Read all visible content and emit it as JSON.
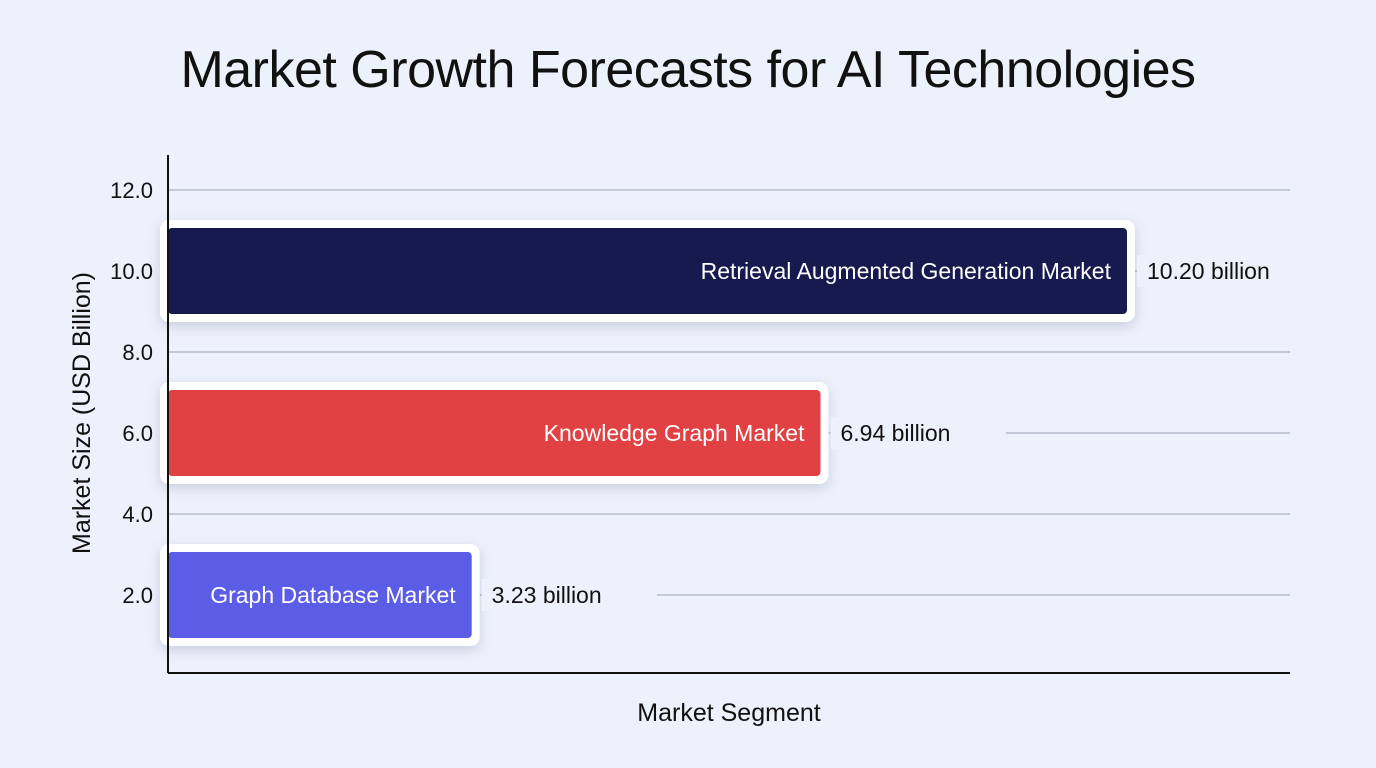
{
  "chart_data": {
    "type": "bar",
    "orientation": "horizontal",
    "title": "Market Growth Forecasts for AI Technologies",
    "xlabel": "Market Segment",
    "ylabel": "Market Size (USD Billion)",
    "y_ticks": [
      "12.0",
      "10.0",
      "8.0",
      "6.0",
      "4.0",
      "2.0"
    ],
    "ylim": [
      0.75,
      13.0
    ],
    "grid": true,
    "categories": [
      "Retrieval Augmented Generation Market",
      "Knowledge Graph Market",
      "Graph Database Market"
    ],
    "values": [
      10.2,
      6.94,
      3.23
    ],
    "value_labels": [
      "10.20 billion",
      "6.94 billion",
      "3.23 billion"
    ],
    "bar_positions": [
      10.0,
      6.0,
      2.0
    ],
    "colors": [
      "#161a4e",
      "#e24144",
      "#5b5de6"
    ]
  }
}
